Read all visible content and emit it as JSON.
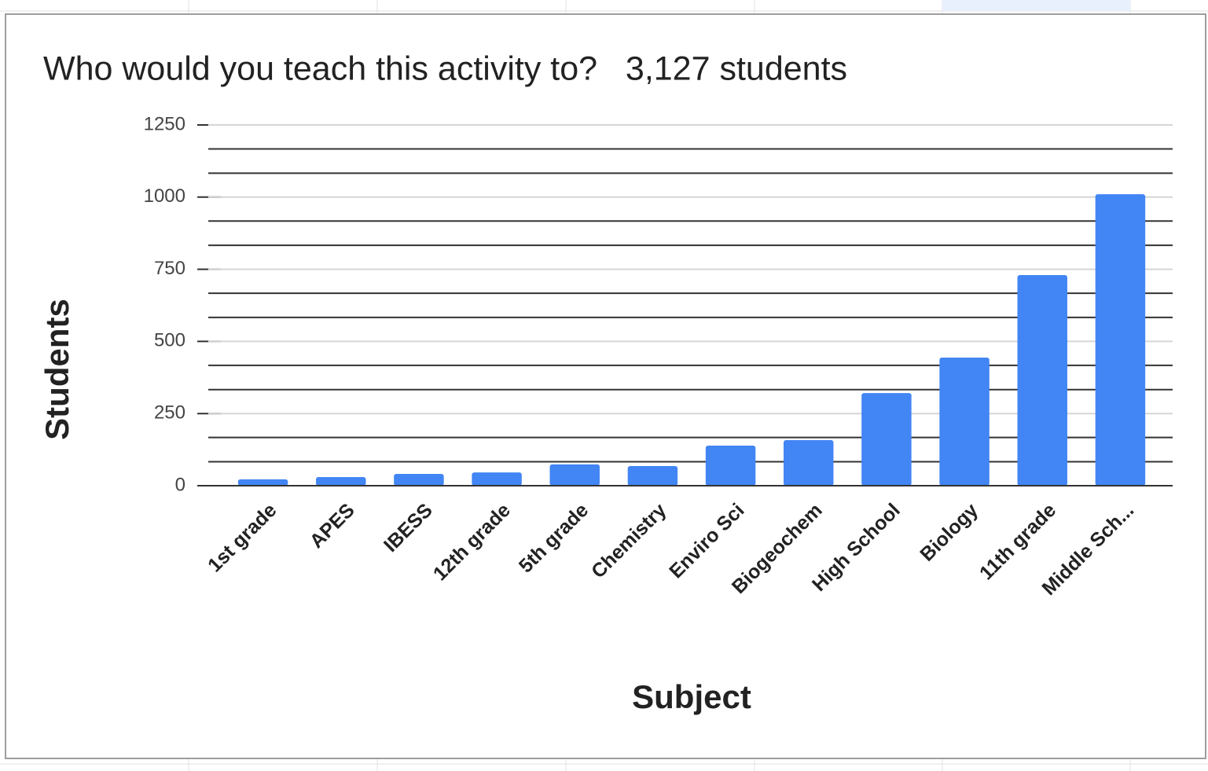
{
  "chart_data": {
    "type": "bar",
    "title": "Who would you teach this activity to?   3,127 students",
    "x_label": "Subject",
    "y_label": "Students",
    "categories": [
      "1st grade",
      "APES",
      "IBESS",
      "12th grade",
      "5th grade",
      "Chemistry",
      "Enviro Sci",
      "Biogeochem",
      "High School",
      "Biology",
      "11th grade",
      "Middle Sch..."
    ],
    "values": [
      22,
      30,
      41,
      46,
      74,
      68,
      139,
      158,
      321,
      444,
      730,
      1010
    ],
    "color": "#4285f4",
    "ylim": [
      0,
      1250
    ],
    "yticks": [
      0,
      250,
      500,
      750,
      1000,
      1250
    ],
    "minor_yticks": [
      83,
      167,
      333,
      417,
      583,
      667,
      833,
      917,
      1083,
      1167
    ],
    "grid": true
  }
}
